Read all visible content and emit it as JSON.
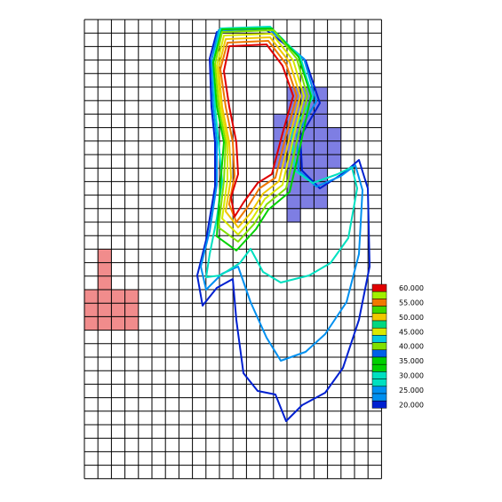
{
  "chart_data": {
    "type": "heatmap",
    "description_kind": "contour map over model grid",
    "grid": {
      "columns": 22,
      "rows": 34,
      "line_color": "#000000",
      "background": "#ffffff"
    },
    "colorbar": {
      "levels": [
        {
          "value": "60.000",
          "color": "#e00000"
        },
        {
          "value": "55.000",
          "color": "#f07800"
        },
        {
          "value": "50.000",
          "color": "#f0c800"
        },
        {
          "value": "45.000",
          "color": "#d8e800"
        },
        {
          "value": "40.000",
          "color": "#80e000"
        },
        {
          "value": "35.000",
          "color": "#00d000"
        },
        {
          "value": "30.000",
          "color": "#00e0c0"
        },
        {
          "value": "25.000",
          "color": "#0090f0"
        },
        {
          "value": "20.000",
          "color": "#0020d0"
        }
      ],
      "extra_swatches": [
        "#a0f000",
        "#40d800",
        "#00d880",
        "#00c8e0",
        "#0060e8"
      ],
      "placement": "right"
    },
    "shaded_regions": [
      {
        "name": "source-area",
        "color": "#f08080"
      },
      {
        "name": "target-area",
        "color": "#7070e0"
      }
    ],
    "contours": [
      {
        "level": 60,
        "color": "#e00000"
      },
      {
        "level": 55,
        "color": "#f07800"
      },
      {
        "level": 50,
        "color": "#f0c800"
      },
      {
        "level": 45,
        "color": "#d8e800"
      },
      {
        "level": 40,
        "color": "#80e000"
      },
      {
        "level": 35,
        "color": "#00d000"
      },
      {
        "level": 30,
        "color": "#00e0c0"
      },
      {
        "level": 25,
        "color": "#0090f0"
      },
      {
        "level": 20,
        "color": "#0020d0"
      }
    ]
  }
}
